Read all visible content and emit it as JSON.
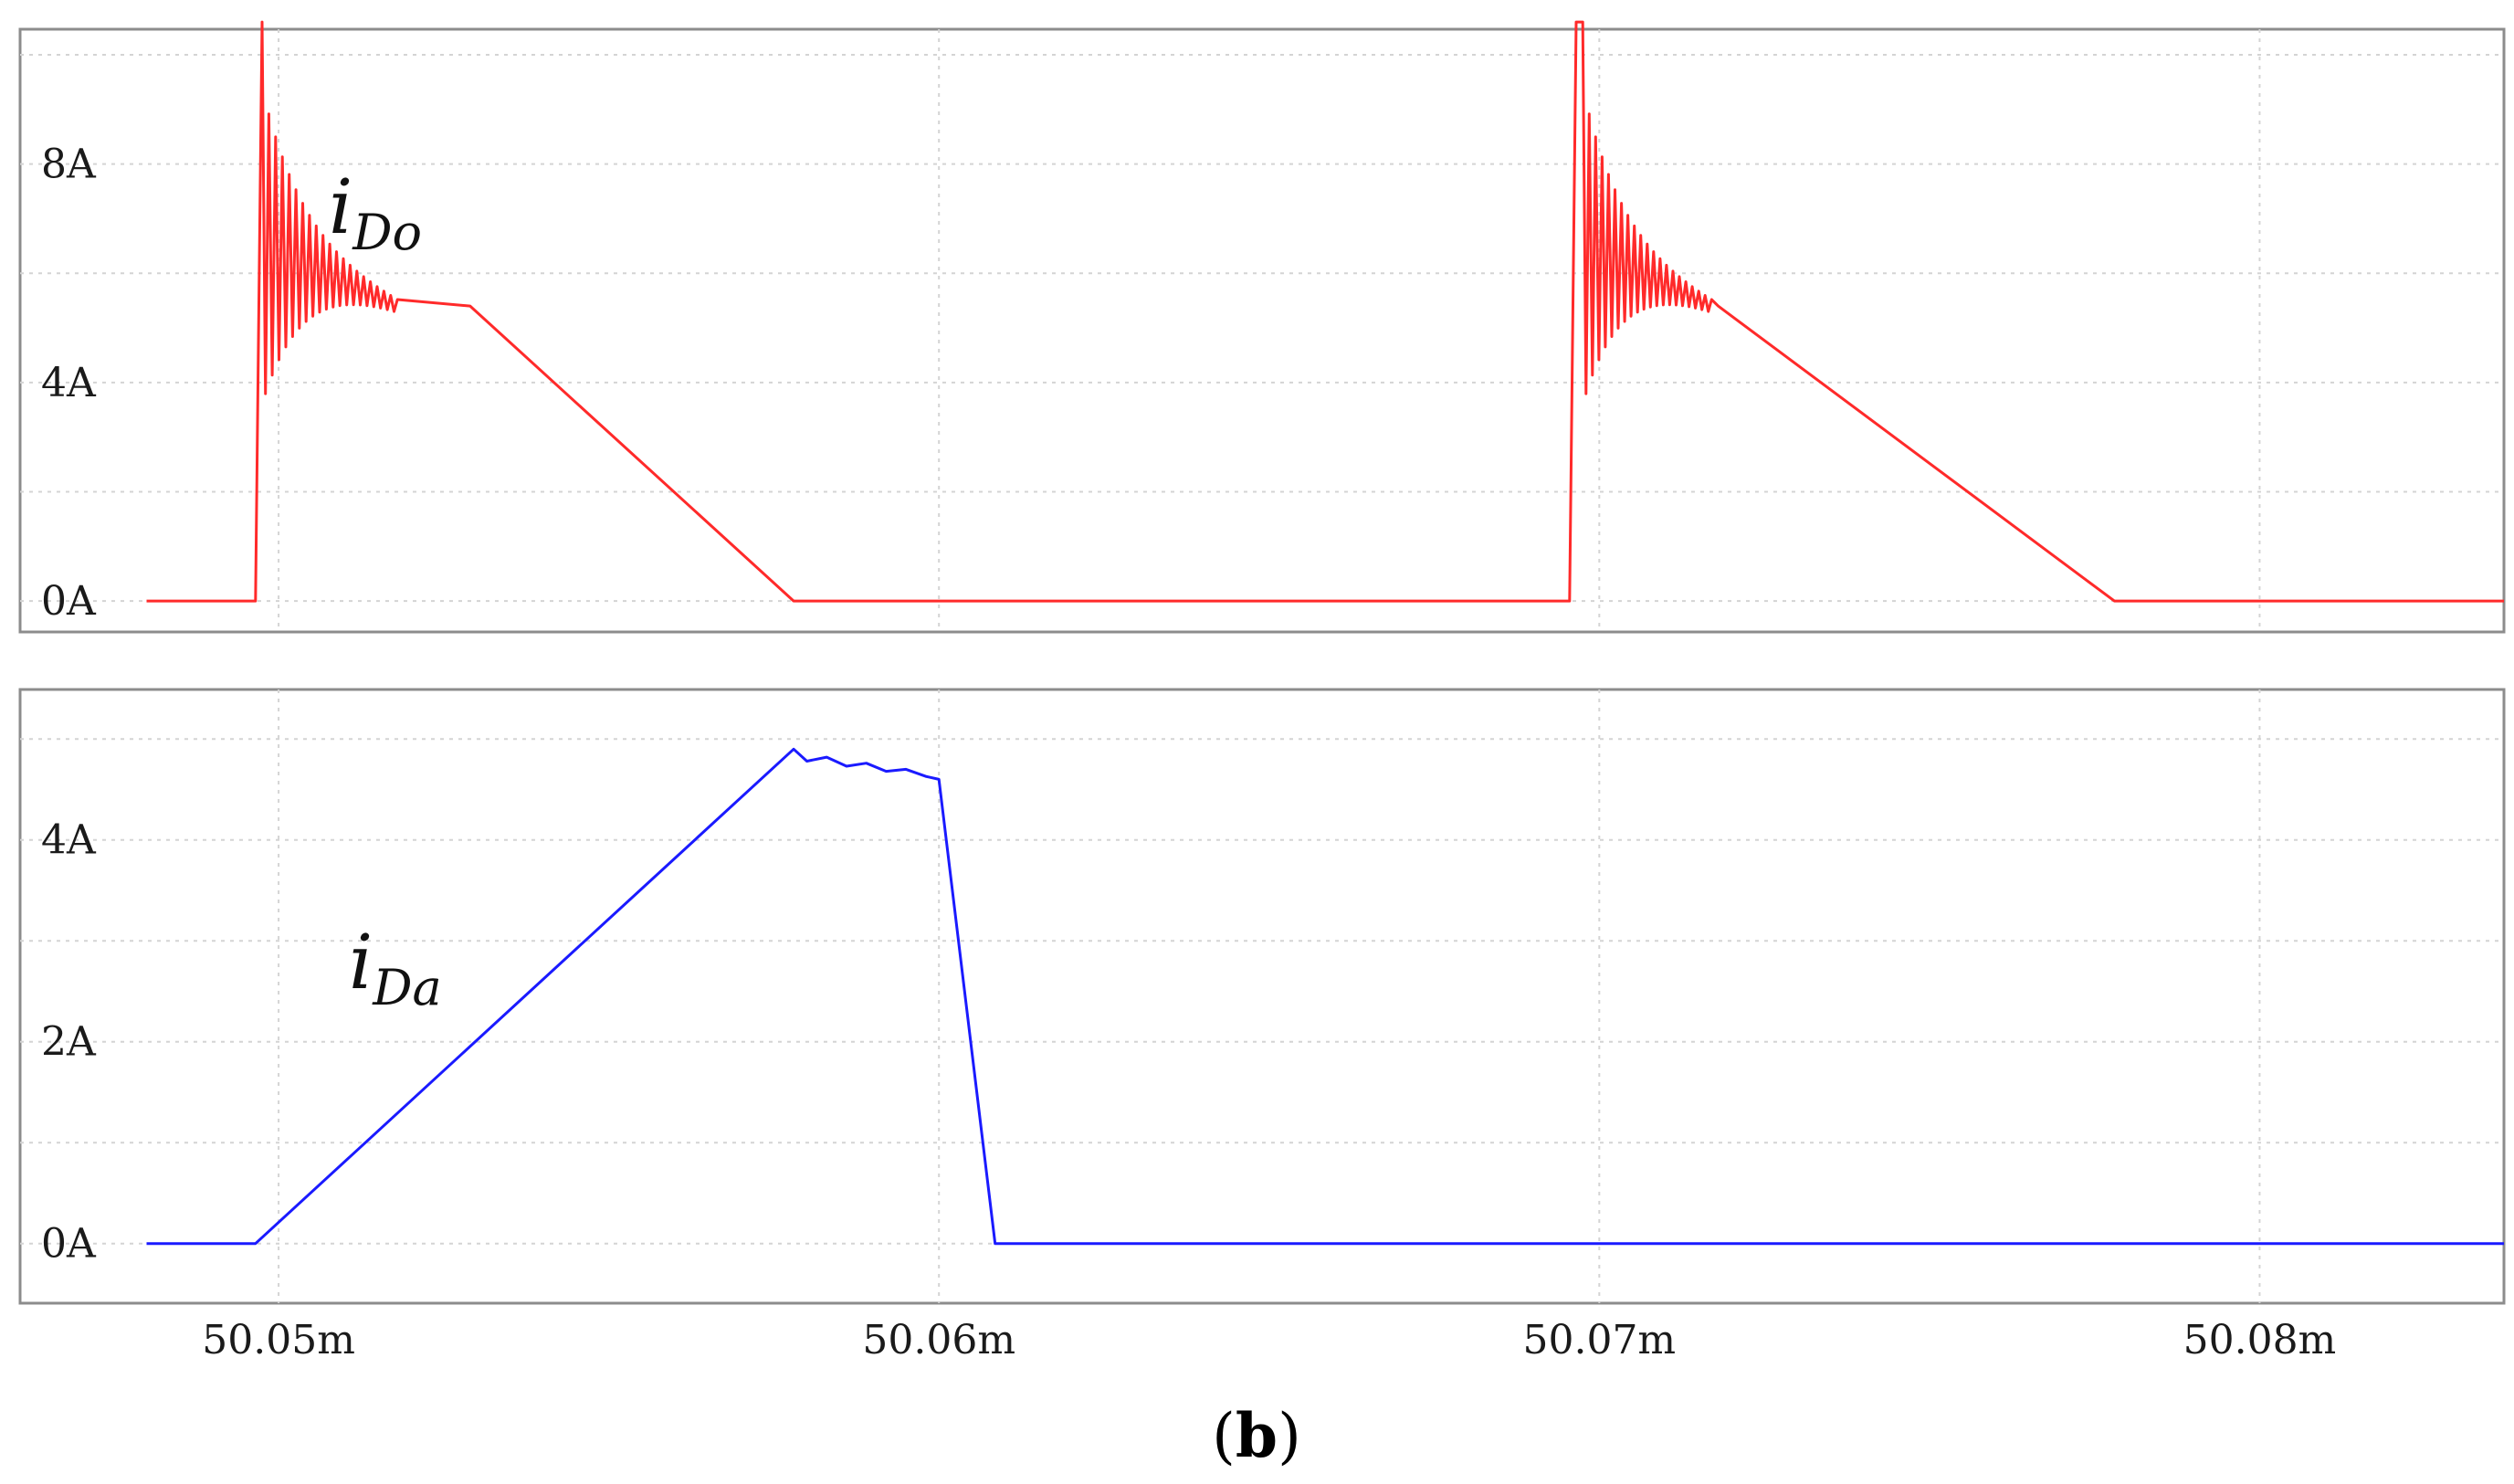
{
  "caption": {
    "open": "(",
    "letter": "b",
    "close": ")"
  },
  "chart_data": [
    {
      "type": "line",
      "title": "",
      "xlabel": "",
      "ylabel": "",
      "xlim": [
        50.0478,
        50.0837
      ],
      "ylim": [
        -0.4,
        10.3
      ],
      "xticks": [
        "50.05m",
        "50.06m",
        "50.07m",
        "50.08m"
      ],
      "xtick_values": [
        50.05,
        50.06,
        50.07,
        50.08
      ],
      "yticks": [
        "0A",
        "4A",
        "8A"
      ],
      "ytick_values": [
        0,
        4,
        8
      ],
      "grid": true,
      "series": [
        {
          "name": "iDo",
          "label_main": "i",
          "label_sub": "Do",
          "color": "#ff2a2a",
          "x": [
            50.048,
            50.04965,
            50.04975,
            50.04985,
            50.05,
            50.0515,
            50.0529,
            50.0578,
            50.0695,
            50.06955,
            50.06965,
            50.06975,
            50.0699,
            50.0705,
            50.0718,
            50.0778,
            50.0837
          ],
          "y": [
            0,
            0,
            10.6,
            6.5,
            6.3,
            5.6,
            5.4,
            0,
            0,
            0,
            10.6,
            6.5,
            6.3,
            5.6,
            5.4,
            0,
            0
          ],
          "ringing": [
            {
              "start": 50.04975,
              "end": 50.0518,
              "peak": 10.6,
              "center": 6.5,
              "amplitude": 2.9,
              "decay_to": 5.4
            },
            {
              "start": 50.06975,
              "end": 50.0717,
              "peak": 10.6,
              "center": 6.5,
              "amplitude": 2.9,
              "decay_to": 5.4
            }
          ]
        }
      ]
    },
    {
      "type": "line",
      "title": "",
      "xlabel": "",
      "ylabel": "",
      "xlim": [
        50.0478,
        50.0837
      ],
      "ylim": [
        -0.5,
        5.4
      ],
      "xticks": [
        "50.05m",
        "50.06m",
        "50.07m",
        "50.08m"
      ],
      "xtick_values": [
        50.05,
        50.06,
        50.07,
        50.08
      ],
      "yticks": [
        "0A",
        "2A",
        "4A"
      ],
      "ytick_values": [
        0,
        2,
        4
      ],
      "grid": true,
      "series": [
        {
          "name": "iDa",
          "label_main": "i",
          "label_sub": "Da",
          "color": "#1a1aff",
          "x": [
            50.048,
            50.04965,
            50.0578,
            50.058,
            50.0583,
            50.0586,
            50.0589,
            50.0592,
            50.0595,
            50.0598,
            50.06,
            50.06085,
            50.0837
          ],
          "y": [
            0,
            0,
            4.9,
            4.78,
            4.82,
            4.73,
            4.76,
            4.68,
            4.7,
            4.63,
            4.6,
            0,
            0
          ]
        }
      ]
    }
  ]
}
